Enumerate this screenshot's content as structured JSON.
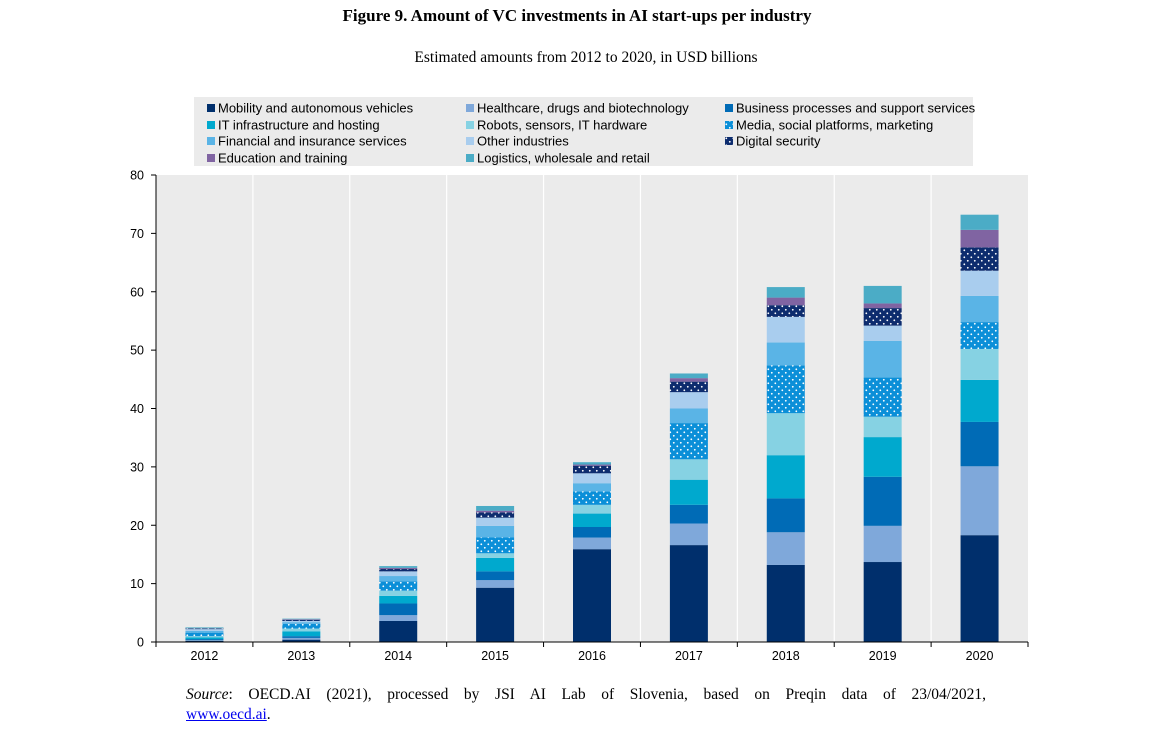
{
  "title": "Figure 9. Amount of VC investments in AI start-ups per industry",
  "subtitle": "Estimated amounts from 2012 to 2020, in USD billions",
  "source": {
    "label": "Source",
    "text": ": OECD.AI (2021), processed by JSI AI Lab of Slovenia, based on Preqin data of 23/04/2021,",
    "link": "www.oecd.ai",
    "tail": "."
  },
  "chart_data": {
    "type": "bar",
    "stacked": true,
    "categories": [
      "2012",
      "2013",
      "2014",
      "2015",
      "2016",
      "2017",
      "2018",
      "2019",
      "2020"
    ],
    "ylim": [
      0,
      80
    ],
    "yticks": [
      0,
      10,
      20,
      30,
      40,
      50,
      60,
      70,
      80
    ],
    "grid": "vertical lines between categories",
    "legend_position": "top",
    "series": [
      {
        "name": "Mobility and autonomous vehicles",
        "color": "#002f6c",
        "pattern": "none",
        "values": [
          0.2,
          0.4,
          3.6,
          9.3,
          15.9,
          16.6,
          13.2,
          13.7,
          18.3
        ]
      },
      {
        "name": "Healthcare, drugs and biotechnology",
        "color": "#7fa8da",
        "pattern": "none",
        "values": [
          0.1,
          0.3,
          1.0,
          1.3,
          2.0,
          3.7,
          5.6,
          6.2,
          11.8
        ]
      },
      {
        "name": "Business processes and support services",
        "color": "#006bb6",
        "pattern": "none",
        "values": [
          0.2,
          0.3,
          2.0,
          1.5,
          1.8,
          3.2,
          5.8,
          8.4,
          7.6
        ]
      },
      {
        "name": "IT infrastructure and hosting",
        "color": "#00a9ce",
        "pattern": "none",
        "values": [
          0.3,
          0.8,
          1.3,
          2.3,
          2.3,
          4.3,
          7.4,
          6.8,
          7.2
        ]
      },
      {
        "name": "Robots, sensors, IT hardware",
        "color": "#86d2e3",
        "pattern": "none",
        "values": [
          0.2,
          0.5,
          0.9,
          0.8,
          1.5,
          3.5,
          7.2,
          3.5,
          5.3
        ]
      },
      {
        "name": "Media, social platforms, marketing",
        "color": "#0b8fd8",
        "pattern": "dots",
        "values": [
          0.6,
          0.8,
          1.6,
          2.7,
          2.3,
          6.2,
          8.2,
          6.7,
          4.6
        ]
      },
      {
        "name": "Financial and insurance services",
        "color": "#5ab4e6",
        "pattern": "none",
        "values": [
          0.3,
          0.3,
          0.9,
          2.0,
          1.4,
          2.5,
          3.9,
          6.3,
          4.5
        ]
      },
      {
        "name": "Other industries",
        "color": "#a9cdee",
        "pattern": "none",
        "values": [
          0.3,
          0.2,
          0.8,
          1.4,
          1.7,
          2.8,
          4.4,
          2.6,
          4.3
        ]
      },
      {
        "name": "Digital security",
        "color": "#0d2c6e",
        "pattern": "dots",
        "values": [
          0.1,
          0.2,
          0.4,
          0.9,
          1.3,
          1.8,
          2.0,
          3.0,
          4.0
        ]
      },
      {
        "name": "Education and training",
        "color": "#8064a2",
        "pattern": "none",
        "values": [
          0.05,
          0.1,
          0.2,
          0.3,
          0.2,
          0.6,
          1.3,
          0.8,
          3.0
        ]
      },
      {
        "name": "Logistics, wholesale and retail",
        "color": "#4bacc6",
        "pattern": "none",
        "values": [
          0.15,
          0.1,
          0.3,
          0.8,
          0.4,
          0.8,
          1.8,
          3.0,
          2.6
        ]
      }
    ]
  }
}
